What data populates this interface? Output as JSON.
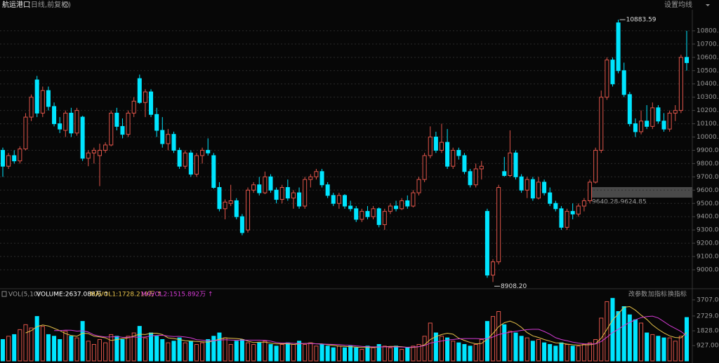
{
  "header": {
    "title": "航运港口",
    "subtitle": "(日线,前复权)",
    "menu": "设置均线"
  },
  "chart_data": [
    {
      "type": "candlestick",
      "up_color": "#e0554a",
      "down_color": "#00e5ff",
      "grid": true,
      "ylim": [
        8868,
        10958
      ],
      "yticks": [
        {
          "value": 9000,
          "label": "9000.00"
        },
        {
          "value": 9100,
          "label": "9100.00"
        },
        {
          "value": 9200,
          "label": "9200.00"
        },
        {
          "value": 9300,
          "label": "9300.00"
        },
        {
          "value": 9400,
          "label": "9400.00"
        },
        {
          "value": 9500,
          "label": "9500.00"
        },
        {
          "value": 9600,
          "label": "9600.00"
        },
        {
          "value": 9700,
          "label": "9700.00"
        },
        {
          "value": 9800,
          "label": "9800.00"
        },
        {
          "value": 9900,
          "label": "9900.00"
        },
        {
          "value": 10000,
          "label": "10000.00"
        },
        {
          "value": 10100,
          "label": "10100.00"
        },
        {
          "value": 10200,
          "label": "10200.00"
        },
        {
          "value": 10300,
          "label": "10300.00"
        },
        {
          "value": 10400,
          "label": "10400.00"
        },
        {
          "value": 10500,
          "label": "10500.00"
        },
        {
          "value": 10600,
          "label": "10600.00"
        },
        {
          "value": 10700,
          "label": "10700.00"
        },
        {
          "value": 10800,
          "label": "10800.00"
        }
      ],
      "annotations": [
        {
          "value": 10883.59
        },
        {
          "value": 8908.2,
          "label": "8908.20"
        }
      ],
      "range_label": "9640.28-9624.85",
      "candles": [
        [
          9900,
          9920,
          9700,
          9780
        ],
        [
          9780,
          9880,
          9760,
          9860
        ],
        [
          9860,
          9900,
          9800,
          9820
        ],
        [
          9820,
          9930,
          9800,
          9910
        ],
        [
          9910,
          10180,
          9900,
          10150
        ],
        [
          10150,
          10320,
          10120,
          10300
        ],
        [
          10430,
          10460,
          10150,
          10180
        ],
        [
          10180,
          10380,
          10150,
          10350
        ],
        [
          10350,
          10380,
          10200,
          10230
        ],
        [
          10230,
          10260,
          10080,
          10100
        ],
        [
          10100,
          10150,
          10030,
          10060
        ],
        [
          10050,
          10200,
          10000,
          10180
        ],
        [
          10180,
          10220,
          10000,
          10030
        ],
        [
          10030,
          10220,
          10010,
          10200
        ],
        [
          10150,
          10160,
          9820,
          9840
        ],
        [
          9840,
          9900,
          9780,
          9880
        ],
        [
          9880,
          9920,
          9800,
          9900
        ],
        [
          9860,
          9950,
          9630,
          9900
        ],
        [
          9900,
          9960,
          9880,
          9940
        ],
        [
          9940,
          10200,
          9930,
          10180
        ],
        [
          10180,
          10220,
          10050,
          10080
        ],
        [
          10080,
          10140,
          9990,
          10020
        ],
        [
          10020,
          10200,
          10000,
          10180
        ],
        [
          10180,
          10300,
          10150,
          10270
        ],
        [
          10440,
          10470,
          10250,
          10260
        ],
        [
          10260,
          10360,
          10150,
          10340
        ],
        [
          10340,
          10360,
          10150,
          10170
        ],
        [
          10170,
          10220,
          10000,
          10050
        ],
        [
          10050,
          10150,
          9920,
          9950
        ],
        [
          9950,
          10060,
          9900,
          10020
        ],
        [
          10020,
          10040,
          9880,
          9900
        ],
        [
          9900,
          9920,
          9760,
          9780
        ],
        [
          9780,
          9900,
          9760,
          9880
        ],
        [
          9880,
          9900,
          9700,
          9720
        ],
        [
          9720,
          9880,
          9700,
          9860
        ],
        [
          9860,
          9920,
          9800,
          9900
        ],
        [
          9900,
          9990,
          9860,
          9880
        ],
        [
          9860,
          9880,
          9610,
          9620
        ],
        [
          9620,
          9660,
          9440,
          9460
        ],
        [
          9460,
          9530,
          9380,
          9510
        ],
        [
          9500,
          9640,
          9480,
          9520
        ],
        [
          9520,
          9540,
          9380,
          9400
        ],
        [
          9400,
          9420,
          9260,
          9280
        ],
        [
          9300,
          9620,
          9280,
          9600
        ],
        [
          9600,
          9660,
          9580,
          9640
        ],
        [
          9640,
          9700,
          9560,
          9580
        ],
        [
          9580,
          9740,
          9570,
          9700
        ],
        [
          9700,
          9720,
          9580,
          9600
        ],
        [
          9600,
          9620,
          9500,
          9530
        ],
        [
          9530,
          9640,
          9500,
          9620
        ],
        [
          9620,
          9680,
          9520,
          9540
        ],
        [
          9540,
          9600,
          9460,
          9580
        ],
        [
          9580,
          9620,
          9460,
          9480
        ],
        [
          9480,
          9700,
          9460,
          9680
        ],
        [
          9680,
          9720,
          9620,
          9700
        ],
        [
          9700,
          9760,
          9680,
          9740
        ],
        [
          9740,
          9760,
          9620,
          9640
        ],
        [
          9640,
          9660,
          9540,
          9560
        ],
        [
          9560,
          9580,
          9480,
          9500
        ],
        [
          9500,
          9580,
          9460,
          9560
        ],
        [
          9560,
          9570,
          9460,
          9480
        ],
        [
          9480,
          9520,
          9440,
          9460
        ],
        [
          9460,
          9480,
          9360,
          9380
        ],
        [
          9380,
          9460,
          9360,
          9440
        ],
        [
          9440,
          9480,
          9380,
          9400
        ],
        [
          9400,
          9480,
          9380,
          9460
        ],
        [
          9460,
          9470,
          9320,
          9340
        ],
        [
          9340,
          9460,
          9300,
          9440
        ],
        [
          9440,
          9500,
          9420,
          9480
        ],
        [
          9480,
          9520,
          9440,
          9460
        ],
        [
          9460,
          9540,
          9450,
          9520
        ],
        [
          9520,
          9560,
          9460,
          9480
        ],
        [
          9480,
          9600,
          9470,
          9580
        ],
        [
          9580,
          9700,
          9560,
          9680
        ],
        [
          9680,
          9880,
          9660,
          9860
        ],
        [
          9860,
          10080,
          9840,
          10000
        ],
        [
          10000,
          10040,
          9880,
          9900
        ],
        [
          9900,
          10100,
          9880,
          9960
        ],
        [
          9960,
          10060,
          9760,
          9780
        ],
        [
          9780,
          9920,
          9760,
          9900
        ],
        [
          9900,
          9920,
          9830,
          9860
        ],
        [
          9860,
          9880,
          9720,
          9740
        ],
        [
          9740,
          9760,
          9620,
          9640
        ],
        [
          9640,
          9800,
          9620,
          9760
        ],
        [
          9760,
          9820,
          9680,
          9780
        ],
        [
          9440,
          9460,
          8940,
          8960
        ],
        [
          8960,
          9080,
          8908.2,
          9060
        ],
        [
          9060,
          9640,
          9040,
          9620
        ],
        [
          9740,
          9850,
          9700,
          9710
        ],
        [
          9710,
          10050,
          9700,
          9880
        ],
        [
          9880,
          9900,
          9680,
          9700
        ],
        [
          9700,
          9720,
          9580,
          9600
        ],
        [
          9600,
          9700,
          9540,
          9680
        ],
        [
          9680,
          9700,
          9520,
          9540
        ],
        [
          9540,
          9700,
          9530,
          9660
        ],
        [
          9660,
          9680,
          9560,
          9580
        ],
        [
          9580,
          9620,
          9480,
          9500
        ],
        [
          9500,
          9520,
          9440,
          9460
        ],
        [
          9460,
          9480,
          9300,
          9320
        ],
        [
          9320,
          9460,
          9300,
          9440
        ],
        [
          9440,
          9500,
          9380,
          9420
        ],
        [
          9420,
          9500,
          9400,
          9480
        ],
        [
          9480,
          9540,
          9440,
          9520
        ],
        [
          9520,
          9680,
          9500,
          9660
        ],
        [
          9660,
          9920,
          9650,
          9900
        ],
        [
          9900,
          10350,
          9880,
          10300
        ],
        [
          10300,
          10600,
          10280,
          10580
        ],
        [
          10580,
          10600,
          10380,
          10400
        ],
        [
          10860,
          10883.59,
          10480,
          10500
        ],
        [
          10500,
          10560,
          10300,
          10320
        ],
        [
          10320,
          10340,
          10080,
          10100
        ],
        [
          10100,
          10140,
          10000,
          10040
        ],
        [
          10040,
          10200,
          10020,
          10120
        ],
        [
          10120,
          10240,
          10060,
          10080
        ],
        [
          10080,
          10260,
          10060,
          10220
        ],
        [
          10220,
          10240,
          10100,
          10120
        ],
        [
          10120,
          10180,
          10040,
          10060
        ],
        [
          10060,
          10200,
          10040,
          10180
        ],
        [
          10180,
          10240,
          10120,
          10200
        ],
        [
          10200,
          10620,
          10180,
          10600
        ],
        [
          10600,
          10800,
          10500,
          10560
        ]
      ]
    },
    {
      "type": "bar",
      "title": "VOL(5,10)",
      "value_color": "#ffffff",
      "ylim": [
        0,
        4300
      ],
      "yticks": [
        {
          "value": 927,
          "label": "927.00"
        },
        {
          "value": 1828,
          "label": "1828.00"
        },
        {
          "value": 2729,
          "label": "2729.00"
        },
        {
          "value": 3707,
          "label": "3707.00"
        }
      ],
      "legend_labels": [
        "VOLUME:2637.088万 ↑",
        "MAVOL1:1728.219万 ↑",
        "MAVOL2:1515.892万 ↑"
      ],
      "values": [
        1300,
        1500,
        1600,
        1900,
        2200,
        2000,
        2700,
        2100,
        1600,
        1500,
        1300,
        1800,
        1500,
        1400,
        2400,
        1200,
        1000,
        1300,
        1100,
        1600,
        1500,
        1300,
        1500,
        1700,
        2100,
        1400,
        1700,
        1500,
        1300,
        1100,
        1200,
        1400,
        1100,
        1200,
        1000,
        1100,
        1300,
        1500,
        1700,
        1400,
        1000,
        1200,
        1300,
        1100,
        1000,
        1100,
        1200,
        1000,
        900,
        1000,
        1100,
        1000,
        1200,
        1000,
        1100,
        900,
        1000,
        900,
        800,
        900,
        800,
        900,
        800,
        700,
        900,
        800,
        1000,
        900,
        800,
        900,
        700,
        800,
        900,
        1000,
        1500,
        2300,
        1700,
        1500,
        1400,
        1200,
        1100,
        1000,
        900,
        1000,
        1300,
        2400,
        2700,
        3000,
        2200,
        1800,
        1700,
        1500,
        1400,
        1200,
        1300,
        1100,
        1000,
        900,
        1100,
        1000,
        900,
        900,
        1000,
        1100,
        1300,
        2600,
        3600,
        3800,
        3000,
        3300,
        2800,
        2500,
        2300,
        1700,
        1600,
        1500,
        1400,
        1400,
        1200,
        1500,
        2637.088
      ],
      "series": [
        {
          "name": "MAVOL1",
          "color": "#e8c34a",
          "values": [
            null,
            null,
            null,
            null,
            1700,
            1840,
            2080,
            2180,
            2120,
            1980,
            1840,
            1660,
            1540,
            1500,
            1680,
            1660,
            1500,
            1460,
            1400,
            1240,
            1300,
            1360,
            1400,
            1520,
            1620,
            1600,
            1680,
            1680,
            1600,
            1400,
            1360,
            1300,
            1220,
            1200,
            1180,
            1160,
            1140,
            1220,
            1320,
            1400,
            1380,
            1360,
            1320,
            1200,
            1120,
            1140,
            1140,
            1080,
            1040,
            1040,
            1040,
            1000,
            1040,
            1060,
            1080,
            1040,
            1040,
            980,
            940,
            900,
            880,
            860,
            840,
            820,
            820,
            820,
            840,
            860,
            880,
            880,
            860,
            820,
            820,
            860,
            980,
            1300,
            1480,
            1600,
            1680,
            1620,
            1380,
            1240,
            1120,
            1040,
            1060,
            1320,
            1660,
            2080,
            2320,
            2420,
            2280,
            2040,
            1720,
            1520,
            1420,
            1300,
            1200,
            1100,
            1080,
            1020,
            980,
            960,
            980,
            980,
            1040,
            1380,
            1920,
            2480,
            2860,
            3260,
            3300,
            3080,
            2780,
            2520,
            2180,
            1920,
            1700,
            1520,
            1420,
            1400,
            1728.219
          ]
        },
        {
          "name": "MAVOL2",
          "color": "#d43bd4",
          "values": [
            null,
            null,
            null,
            null,
            null,
            null,
            null,
            null,
            null,
            1840,
            1840,
            1870,
            1860,
            1810,
            1830,
            1750,
            1580,
            1500,
            1450,
            1460,
            1480,
            1430,
            1430,
            1460,
            1430,
            1450,
            1520,
            1540,
            1560,
            1510,
            1480,
            1490,
            1450,
            1400,
            1290,
            1260,
            1220,
            1220,
            1260,
            1290,
            1270,
            1250,
            1270,
            1260,
            1260,
            1260,
            1250,
            1200,
            1120,
            1080,
            1090,
            1070,
            1060,
            1050,
            1060,
            1040,
            1020,
            1010,
            1000,
            990,
            960,
            950,
            910,
            880,
            860,
            850,
            850,
            850,
            850,
            850,
            840,
            830,
            840,
            870,
            930,
            1080,
            1150,
            1210,
            1270,
            1300,
            1340,
            1360,
            1360,
            1360,
            1340,
            1350,
            1450,
            1600,
            1680,
            1740,
            1800,
            1850,
            1900,
            1920,
            1920,
            1790,
            1620,
            1410,
            1300,
            1220,
            1140,
            1080,
            1040,
            1030,
            1030,
            1180,
            1440,
            1730,
            1920,
            2150,
            2340,
            2500,
            2630,
            2690,
            2720,
            2610,
            2390,
            2150,
            1970,
            1790,
            1515.892
          ]
        }
      ]
    }
  ],
  "toolbar": [
    "改参数",
    "加指标",
    "换指标"
  ]
}
